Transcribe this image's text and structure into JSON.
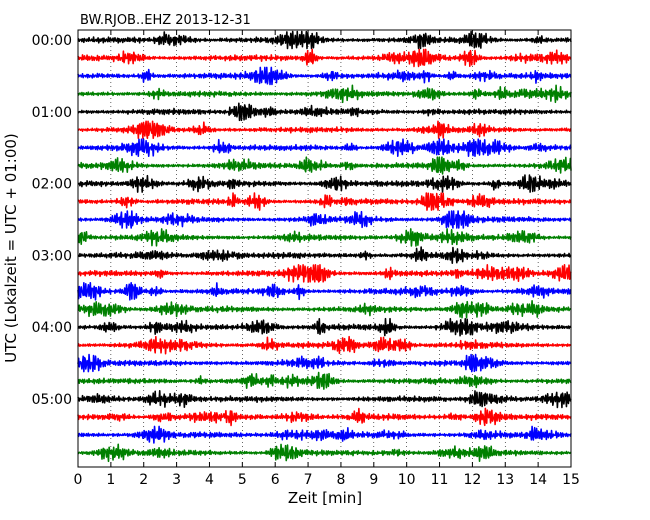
{
  "chart_data": {
    "type": "line",
    "title": "BW.RJOB..EHZ 2013-12-31",
    "xlabel": "Zeit  [min]",
    "ylabel": "UTC (Lokalzeit = UTC + 01:00)",
    "xlim": [
      0,
      15
    ],
    "x_ticks": [
      0,
      1,
      2,
      3,
      4,
      5,
      6,
      7,
      8,
      9,
      10,
      11,
      12,
      13,
      14,
      15
    ],
    "y_tick_labels": [
      "00:00",
      "01:00",
      "02:00",
      "03:00",
      "04:00",
      "05:00"
    ],
    "rows_per_hour": 4,
    "minutes_per_row": 15,
    "row_count": 24,
    "color_cycle": [
      "#000000",
      "#ff0000",
      "#0000ff",
      "#008000"
    ],
    "grid": true
  }
}
